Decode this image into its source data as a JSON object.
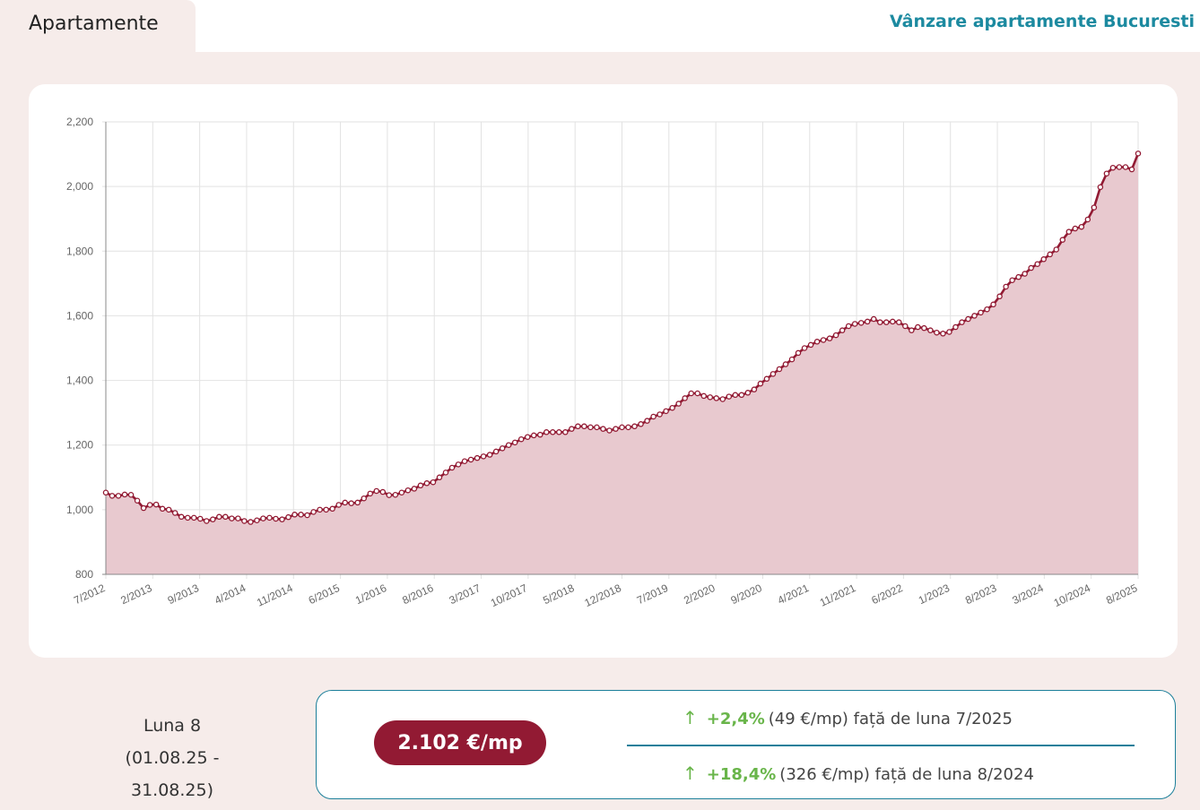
{
  "tab": {
    "label": "Apartamente"
  },
  "top_link": {
    "label": "Vânzare apartamente Bucuresti"
  },
  "period": {
    "title": "Luna 8",
    "range": "(01.08.25 - 31.08.25)"
  },
  "price": {
    "value": "2.102 €/mp"
  },
  "changes": [
    {
      "pct": "+2,4%",
      "text": "(49 €/mp) față de luna 7/2025"
    },
    {
      "pct": "+18,4%",
      "text": "(326 €/mp) față de luna 8/2024"
    }
  ],
  "colors": {
    "line": "#921a33",
    "fill": "#e8c9cf",
    "accent": "#1c8aa0",
    "up": "#69b54a"
  },
  "chart_data": {
    "type": "area",
    "x_tick_labels": [
      "7/2012",
      "2/2013",
      "9/2013",
      "4/2014",
      "11/2014",
      "6/2015",
      "1/2016",
      "8/2016",
      "3/2017",
      "10/2017",
      "5/2018",
      "12/2018",
      "7/2019",
      "2/2020",
      "9/2020",
      "4/2021",
      "11/2021",
      "6/2022",
      "1/2023",
      "8/2023",
      "3/2024",
      "10/2024",
      "8/2025"
    ],
    "y_ticks": [
      "800",
      "1,000",
      "1,200",
      "1,400",
      "1,600",
      "1,800",
      "2,000",
      "2,200"
    ],
    "ylim": [
      800,
      2200
    ],
    "x_start": "7/2012",
    "x_end": "8/2025",
    "grid": true,
    "legend": "none",
    "series": [
      {
        "values": [
          1053,
          1043,
          1043,
          1047,
          1046,
          1028,
          1005,
          1015,
          1016,
          1003,
          1000,
          990,
          978,
          975,
          975,
          972,
          965,
          970,
          978,
          978,
          973,
          973,
          965,
          962,
          967,
          973,
          975,
          972,
          970,
          977,
          985,
          985,
          983,
          993,
          1000,
          1000,
          1003,
          1015,
          1022,
          1020,
          1022,
          1035,
          1050,
          1058,
          1055,
          1045,
          1046,
          1053,
          1060,
          1065,
          1075,
          1082,
          1085,
          1100,
          1115,
          1130,
          1140,
          1150,
          1155,
          1160,
          1165,
          1170,
          1180,
          1190,
          1200,
          1208,
          1218,
          1225,
          1230,
          1232,
          1240,
          1240,
          1240,
          1240,
          1250,
          1258,
          1258,
          1255,
          1255,
          1250,
          1245,
          1250,
          1255,
          1255,
          1258,
          1265,
          1275,
          1288,
          1295,
          1305,
          1315,
          1328,
          1345,
          1360,
          1360,
          1352,
          1348,
          1345,
          1342,
          1350,
          1355,
          1355,
          1362,
          1372,
          1390,
          1405,
          1420,
          1435,
          1450,
          1465,
          1485,
          1500,
          1510,
          1520,
          1525,
          1530,
          1540,
          1555,
          1568,
          1575,
          1578,
          1582,
          1590,
          1580,
          1580,
          1582,
          1580,
          1568,
          1555,
          1565,
          1562,
          1555,
          1548,
          1545,
          1550,
          1565,
          1580,
          1590,
          1600,
          1610,
          1620,
          1635,
          1660,
          1690,
          1710,
          1720,
          1730,
          1748,
          1760,
          1775,
          1790,
          1805,
          1835,
          1860,
          1870,
          1875,
          1898,
          1935,
          1998,
          2040,
          2058,
          2060,
          2060,
          2053,
          2102
        ]
      }
    ]
  }
}
